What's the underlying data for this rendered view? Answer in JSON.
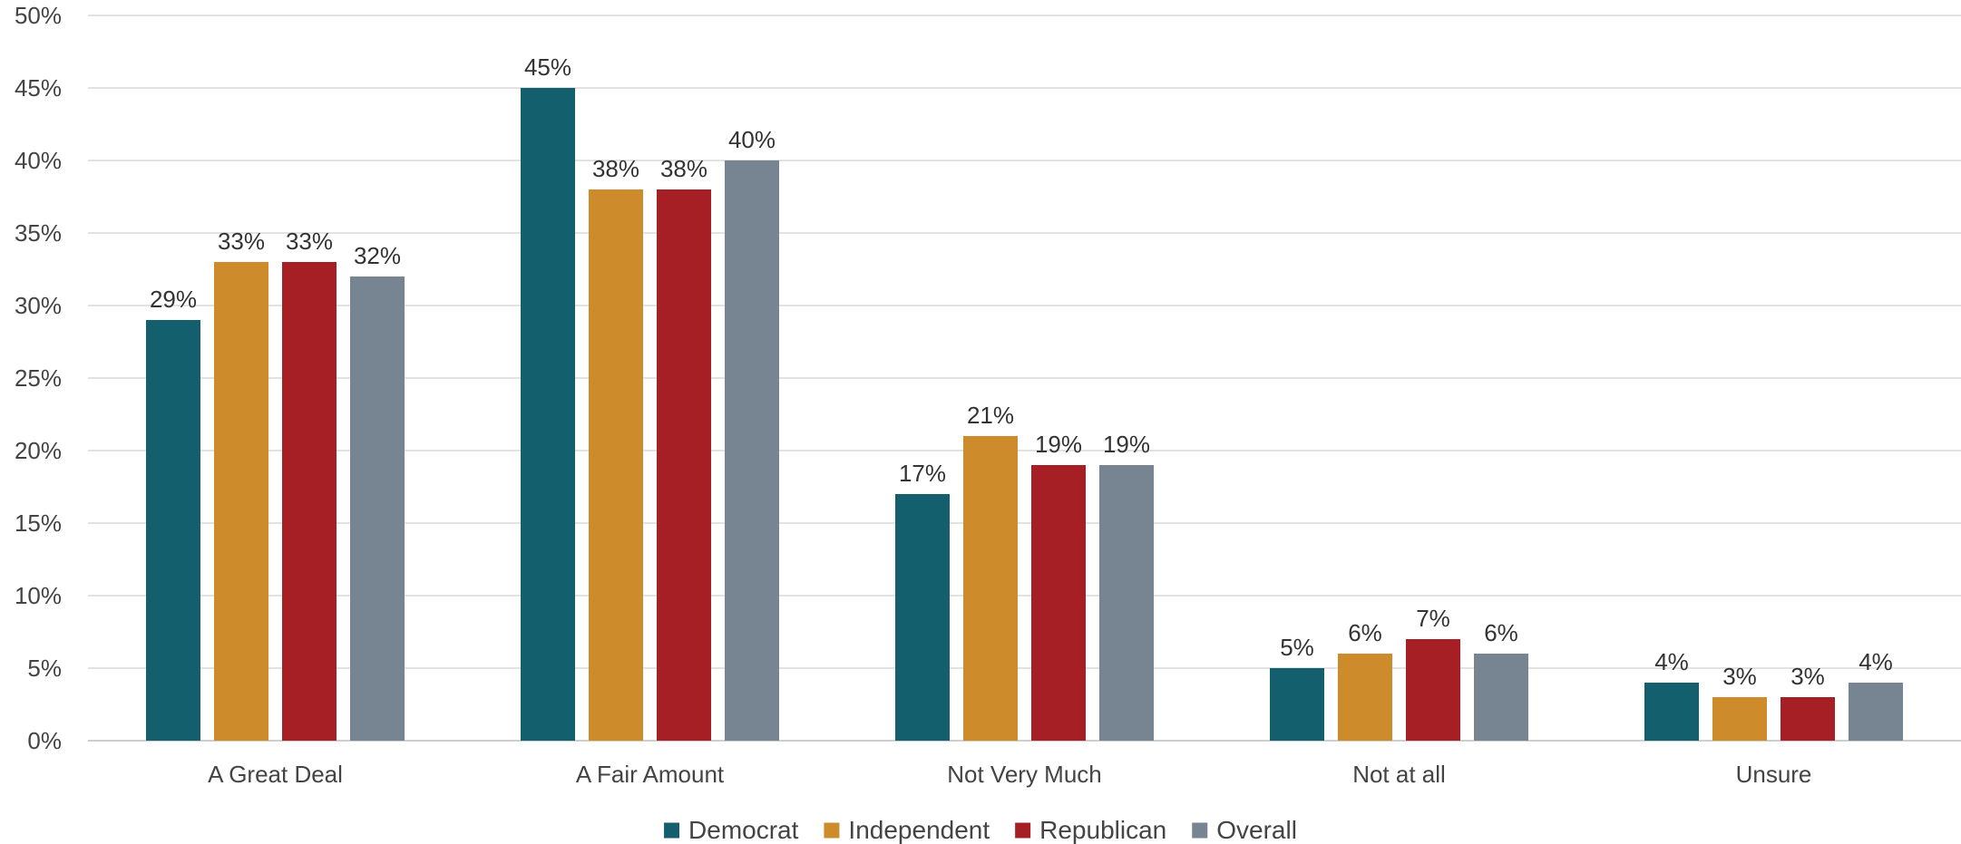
{
  "chart_data": {
    "type": "bar",
    "title": "",
    "xlabel": "",
    "ylabel": "",
    "categories": [
      "A Great Deal",
      "A Fair Amount",
      "Not Very Much",
      "Not at all",
      "Unsure"
    ],
    "series": [
      {
        "name": "Democrat",
        "color": "#145f6e",
        "values": [
          29,
          45,
          17,
          5,
          4
        ]
      },
      {
        "name": "Independent",
        "color": "#cd8b2b",
        "values": [
          33,
          38,
          21,
          6,
          3
        ]
      },
      {
        "name": "Republican",
        "color": "#a61f25",
        "values": [
          33,
          38,
          19,
          7,
          3
        ]
      },
      {
        "name": "Overall",
        "color": "#768591",
        "values": [
          32,
          40,
          19,
          6,
          4
        ]
      }
    ],
    "ylim": [
      0,
      50
    ],
    "ytick_step": 5,
    "value_suffix": "%",
    "grid": true,
    "legend_position": "bottom-center"
  }
}
